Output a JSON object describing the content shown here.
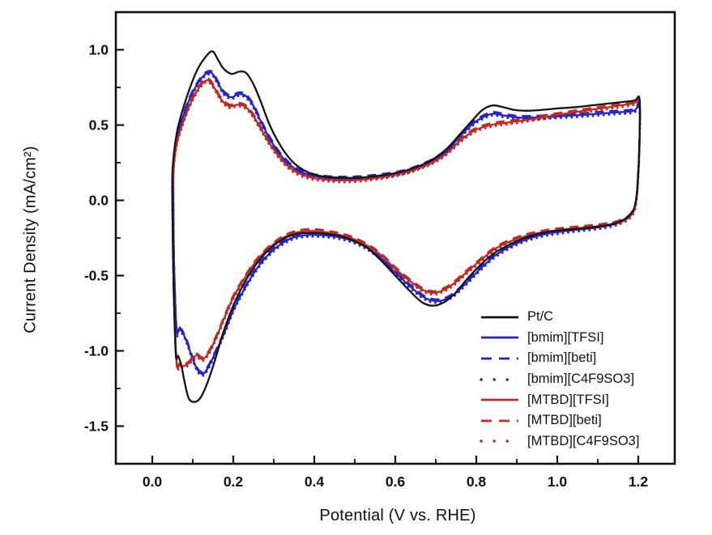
{
  "chart_data": {
    "type": "line",
    "subtype": "cyclic-voltammogram",
    "title": "",
    "xlabel": "Potential (V vs. RHE)",
    "ylabel": "Current Density (mA/cm²)",
    "xlim": [
      -0.09,
      1.29
    ],
    "ylim": [
      -1.75,
      1.25
    ],
    "grid": false,
    "legend_position": "inside-bottom-right",
    "axis_color": "#111111",
    "background_color": "#ffffff",
    "xticks": {
      "values": [
        0.0,
        0.2,
        0.4,
        0.6,
        0.8,
        1.0,
        1.2
      ],
      "labels": [
        "0.0",
        "0.2",
        "0.4",
        "0.6",
        "0.8",
        "1.0",
        "1.2"
      ]
    },
    "xminor": [
      0.1,
      0.3,
      0.5,
      0.7,
      0.9,
      1.1
    ],
    "yticks": {
      "values": [
        1.0,
        0.5,
        0.0,
        -0.5,
        -1.0,
        -1.5
      ],
      "labels": [
        "1.0",
        "0.5",
        "0.0",
        "-0.5",
        "-1.0",
        "-1.5"
      ]
    },
    "yminor": [
      0.75,
      0.25,
      -0.25,
      -0.75,
      -1.25
    ],
    "series": [
      {
        "name": "Pt/C",
        "color": "#141414",
        "style": "solid",
        "base": "ptc",
        "offset": 0
      },
      {
        "name": "[bmim][TFSI]",
        "color": "#2323cc",
        "style": "solid",
        "base": "bmim",
        "offset": 0
      },
      {
        "name": "[bmim][beti]",
        "color": "#2323cc",
        "style": "dashed",
        "base": "bmim",
        "offset": 0.012
      },
      {
        "name": "[bmim][C4F9SO3]",
        "color": "#2323cc",
        "style": "dotted",
        "base": "bmim",
        "offset": -0.012
      },
      {
        "name": "[MTBD][TFSI]",
        "color": "#c1281e",
        "style": "solid",
        "base": "mtbd",
        "offset": 0
      },
      {
        "name": "[MTBD][beti]",
        "color": "#c1281e",
        "style": "dashed",
        "base": "mtbd",
        "offset": 0.012
      },
      {
        "name": "[MTBD][C4F9SO3]",
        "color": "#c1281e",
        "style": "dotted",
        "base": "mtbd",
        "offset": -0.012
      }
    ],
    "loops": {
      "ptc": [
        [
          0.058,
          -1.02
        ],
        [
          0.053,
          -0.6
        ],
        [
          0.05,
          -0.1
        ],
        [
          0.05,
          0.2
        ],
        [
          0.06,
          0.44
        ],
        [
          0.075,
          0.6
        ],
        [
          0.092,
          0.74
        ],
        [
          0.11,
          0.86
        ],
        [
          0.128,
          0.94
        ],
        [
          0.148,
          0.99
        ],
        [
          0.163,
          0.93
        ],
        [
          0.176,
          0.875
        ],
        [
          0.195,
          0.84
        ],
        [
          0.215,
          0.855
        ],
        [
          0.232,
          0.845
        ],
        [
          0.25,
          0.77
        ],
        [
          0.268,
          0.655
        ],
        [
          0.29,
          0.5
        ],
        [
          0.315,
          0.37
        ],
        [
          0.34,
          0.275
        ],
        [
          0.365,
          0.215
        ],
        [
          0.395,
          0.175
        ],
        [
          0.43,
          0.155
        ],
        [
          0.47,
          0.15
        ],
        [
          0.51,
          0.15
        ],
        [
          0.55,
          0.16
        ],
        [
          0.59,
          0.175
        ],
        [
          0.63,
          0.2
        ],
        [
          0.67,
          0.24
        ],
        [
          0.7,
          0.285
        ],
        [
          0.73,
          0.35
        ],
        [
          0.76,
          0.44
        ],
        [
          0.79,
          0.53
        ],
        [
          0.815,
          0.6
        ],
        [
          0.84,
          0.63
        ],
        [
          0.865,
          0.62
        ],
        [
          0.895,
          0.6
        ],
        [
          0.925,
          0.595
        ],
        [
          0.96,
          0.6
        ],
        [
          1.0,
          0.61
        ],
        [
          1.05,
          0.62
        ],
        [
          1.1,
          0.635
        ],
        [
          1.15,
          0.65
        ],
        [
          1.19,
          0.662
        ],
        [
          1.203,
          0.672
        ],
        [
          1.203,
          0.4
        ],
        [
          1.198,
          0.1
        ],
        [
          1.192,
          -0.03
        ],
        [
          1.183,
          -0.085
        ],
        [
          1.168,
          -0.122
        ],
        [
          1.14,
          -0.155
        ],
        [
          1.1,
          -0.175
        ],
        [
          1.05,
          -0.19
        ],
        [
          1.005,
          -0.2
        ],
        [
          0.965,
          -0.215
        ],
        [
          0.925,
          -0.245
        ],
        [
          0.885,
          -0.29
        ],
        [
          0.845,
          -0.35
        ],
        [
          0.81,
          -0.43
        ],
        [
          0.775,
          -0.53
        ],
        [
          0.745,
          -0.625
        ],
        [
          0.715,
          -0.685
        ],
        [
          0.69,
          -0.7
        ],
        [
          0.665,
          -0.675
        ],
        [
          0.635,
          -0.6
        ],
        [
          0.6,
          -0.5
        ],
        [
          0.565,
          -0.4
        ],
        [
          0.53,
          -0.315
        ],
        [
          0.49,
          -0.26
        ],
        [
          0.45,
          -0.23
        ],
        [
          0.41,
          -0.218
        ],
        [
          0.375,
          -0.218
        ],
        [
          0.345,
          -0.23
        ],
        [
          0.315,
          -0.27
        ],
        [
          0.285,
          -0.335
        ],
        [
          0.255,
          -0.43
        ],
        [
          0.225,
          -0.56
        ],
        [
          0.2,
          -0.7
        ],
        [
          0.175,
          -0.88
        ],
        [
          0.155,
          -1.06
        ],
        [
          0.135,
          -1.22
        ],
        [
          0.118,
          -1.315
        ],
        [
          0.103,
          -1.34
        ],
        [
          0.09,
          -1.315
        ],
        [
          0.08,
          -1.21
        ],
        [
          0.072,
          -1.1
        ],
        [
          0.064,
          -1.035
        ]
      ],
      "bmim": [
        [
          0.06,
          -0.865
        ],
        [
          0.054,
          -0.45
        ],
        [
          0.052,
          0.0
        ],
        [
          0.053,
          0.25
        ],
        [
          0.062,
          0.43
        ],
        [
          0.077,
          0.565
        ],
        [
          0.094,
          0.685
        ],
        [
          0.112,
          0.775
        ],
        [
          0.13,
          0.835
        ],
        [
          0.147,
          0.845
        ],
        [
          0.162,
          0.78
        ],
        [
          0.176,
          0.715
        ],
        [
          0.195,
          0.685
        ],
        [
          0.213,
          0.705
        ],
        [
          0.23,
          0.695
        ],
        [
          0.248,
          0.635
        ],
        [
          0.266,
          0.535
        ],
        [
          0.289,
          0.415
        ],
        [
          0.314,
          0.31
        ],
        [
          0.34,
          0.235
        ],
        [
          0.365,
          0.19
        ],
        [
          0.395,
          0.165
        ],
        [
          0.43,
          0.15
        ],
        [
          0.47,
          0.145
        ],
        [
          0.51,
          0.148
        ],
        [
          0.55,
          0.158
        ],
        [
          0.59,
          0.172
        ],
        [
          0.63,
          0.195
        ],
        [
          0.67,
          0.235
        ],
        [
          0.7,
          0.275
        ],
        [
          0.73,
          0.335
        ],
        [
          0.76,
          0.425
        ],
        [
          0.79,
          0.505
        ],
        [
          0.815,
          0.55
        ],
        [
          0.84,
          0.575
        ],
        [
          0.865,
          0.565
        ],
        [
          0.895,
          0.552
        ],
        [
          0.925,
          0.548
        ],
        [
          0.96,
          0.552
        ],
        [
          1.0,
          0.558
        ],
        [
          1.05,
          0.565
        ],
        [
          1.1,
          0.575
        ],
        [
          1.15,
          0.585
        ],
        [
          1.19,
          0.595
        ],
        [
          1.203,
          0.635
        ],
        [
          1.203,
          0.38
        ],
        [
          1.198,
          0.08
        ],
        [
          1.192,
          -0.045
        ],
        [
          1.183,
          -0.095
        ],
        [
          1.168,
          -0.13
        ],
        [
          1.14,
          -0.16
        ],
        [
          1.1,
          -0.18
        ],
        [
          1.05,
          -0.195
        ],
        [
          1.005,
          -0.21
        ],
        [
          0.965,
          -0.228
        ],
        [
          0.925,
          -0.258
        ],
        [
          0.885,
          -0.305
        ],
        [
          0.845,
          -0.37
        ],
        [
          0.81,
          -0.455
        ],
        [
          0.775,
          -0.55
        ],
        [
          0.745,
          -0.625
        ],
        [
          0.72,
          -0.662
        ],
        [
          0.695,
          -0.668
        ],
        [
          0.668,
          -0.64
        ],
        [
          0.638,
          -0.575
        ],
        [
          0.6,
          -0.48
        ],
        [
          0.565,
          -0.385
        ],
        [
          0.53,
          -0.315
        ],
        [
          0.49,
          -0.265
        ],
        [
          0.45,
          -0.24
        ],
        [
          0.41,
          -0.23
        ],
        [
          0.375,
          -0.232
        ],
        [
          0.345,
          -0.25
        ],
        [
          0.315,
          -0.295
        ],
        [
          0.285,
          -0.365
        ],
        [
          0.255,
          -0.465
        ],
        [
          0.225,
          -0.6
        ],
        [
          0.2,
          -0.73
        ],
        [
          0.178,
          -0.88
        ],
        [
          0.158,
          -1.0
        ],
        [
          0.14,
          -1.1
        ],
        [
          0.126,
          -1.152
        ],
        [
          0.112,
          -1.128
        ],
        [
          0.098,
          -1.04
        ],
        [
          0.086,
          -0.945
        ],
        [
          0.075,
          -0.88
        ],
        [
          0.066,
          -0.853
        ]
      ],
      "mtbd": [
        [
          0.06,
          -1.075
        ],
        [
          0.053,
          -0.6
        ],
        [
          0.05,
          -0.05
        ],
        [
          0.052,
          0.18
        ],
        [
          0.06,
          0.37
        ],
        [
          0.075,
          0.51
        ],
        [
          0.092,
          0.63
        ],
        [
          0.11,
          0.725
        ],
        [
          0.127,
          0.785
        ],
        [
          0.14,
          0.795
        ],
        [
          0.155,
          0.74
        ],
        [
          0.17,
          0.67
        ],
        [
          0.19,
          0.625
        ],
        [
          0.21,
          0.635
        ],
        [
          0.228,
          0.625
        ],
        [
          0.246,
          0.575
        ],
        [
          0.265,
          0.49
        ],
        [
          0.288,
          0.385
        ],
        [
          0.313,
          0.29
        ],
        [
          0.34,
          0.215
        ],
        [
          0.365,
          0.175
        ],
        [
          0.395,
          0.15
        ],
        [
          0.43,
          0.138
        ],
        [
          0.47,
          0.132
        ],
        [
          0.51,
          0.136
        ],
        [
          0.55,
          0.148
        ],
        [
          0.59,
          0.165
        ],
        [
          0.63,
          0.19
        ],
        [
          0.67,
          0.228
        ],
        [
          0.7,
          0.265
        ],
        [
          0.73,
          0.32
        ],
        [
          0.76,
          0.395
        ],
        [
          0.79,
          0.455
        ],
        [
          0.815,
          0.485
        ],
        [
          0.845,
          0.505
        ],
        [
          0.875,
          0.515
        ],
        [
          0.91,
          0.528
        ],
        [
          0.95,
          0.545
        ],
        [
          1.0,
          0.567
        ],
        [
          1.05,
          0.588
        ],
        [
          1.1,
          0.608
        ],
        [
          1.15,
          0.628
        ],
        [
          1.19,
          0.645
        ],
        [
          1.203,
          0.662
        ],
        [
          1.203,
          0.38
        ],
        [
          1.198,
          0.08
        ],
        [
          1.192,
          -0.045
        ],
        [
          1.183,
          -0.095
        ],
        [
          1.168,
          -0.128
        ],
        [
          1.14,
          -0.155
        ],
        [
          1.1,
          -0.172
        ],
        [
          1.05,
          -0.185
        ],
        [
          1.005,
          -0.197
        ],
        [
          0.965,
          -0.212
        ],
        [
          0.925,
          -0.235
        ],
        [
          0.885,
          -0.272
        ],
        [
          0.845,
          -0.325
        ],
        [
          0.81,
          -0.4
        ],
        [
          0.775,
          -0.48
        ],
        [
          0.745,
          -0.552
        ],
        [
          0.72,
          -0.595
        ],
        [
          0.695,
          -0.615
        ],
        [
          0.668,
          -0.595
        ],
        [
          0.638,
          -0.54
        ],
        [
          0.6,
          -0.455
        ],
        [
          0.565,
          -0.365
        ],
        [
          0.53,
          -0.3
        ],
        [
          0.49,
          -0.25
        ],
        [
          0.45,
          -0.222
        ],
        [
          0.41,
          -0.205
        ],
        [
          0.375,
          -0.205
        ],
        [
          0.345,
          -0.222
        ],
        [
          0.315,
          -0.262
        ],
        [
          0.285,
          -0.325
        ],
        [
          0.255,
          -0.41
        ],
        [
          0.225,
          -0.53
        ],
        [
          0.2,
          -0.645
        ],
        [
          0.178,
          -0.78
        ],
        [
          0.158,
          -0.91
        ],
        [
          0.14,
          -1.01
        ],
        [
          0.124,
          -1.055
        ],
        [
          0.11,
          -1.03
        ],
        [
          0.1,
          -1.05
        ],
        [
          0.09,
          -1.083
        ],
        [
          0.078,
          -1.1
        ],
        [
          0.068,
          -1.095
        ]
      ]
    }
  }
}
